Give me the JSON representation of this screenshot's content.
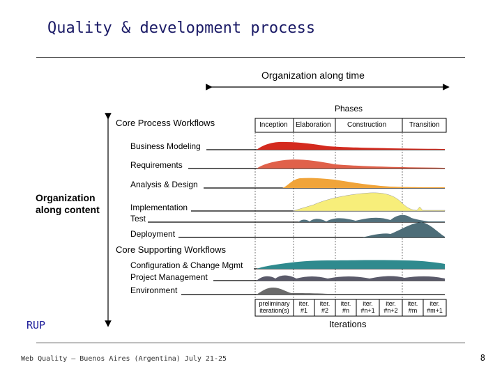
{
  "slide": {
    "title": "Quality & development process",
    "footer": "Web Quality – Buenos Aires (Argentina) July 21-25",
    "page_number": "8"
  },
  "diagram": {
    "organization_time": "Organization along time",
    "organization_content": [
      "Organization",
      "along content"
    ],
    "phases_label": "Phases",
    "core_process_label": "Core Process Workflows",
    "core_supporting_label": "Core Supporting Workflows",
    "phases": [
      "Inception",
      "Elaboration",
      "Construction",
      "Transition"
    ],
    "process_workflows": [
      "Business Modeling",
      "Requirements",
      "Analysis & Design",
      "Implementation",
      "Test",
      "Deployment"
    ],
    "supporting_workflows": [
      "Configuration & Change Mgmt",
      "Project Management",
      "Environment"
    ],
    "iterations_label": "Iterations",
    "iterations": [
      [
        "preliminary",
        "iteration(s)"
      ],
      [
        "iter.",
        "#1"
      ],
      [
        "iter.",
        "#2"
      ],
      [
        "iter.",
        "#n"
      ],
      [
        "iter.",
        "#n+1"
      ],
      [
        "iter.",
        "#n+2"
      ],
      [
        "iter.",
        "#m"
      ],
      [
        "iter.",
        "#m+1"
      ]
    ],
    "rup_label": "RUP",
    "colors": {
      "business_modeling": "#d42a1e",
      "requirements": "#e0614a",
      "analysis_design": "#f0a43a",
      "implementation": "#f7ee7a",
      "test": "#52707c",
      "deployment": "#4d6d78",
      "config": "#2f8a8e",
      "project_mgmt": "#5a5a6a",
      "environment": "#6a6a6a"
    }
  }
}
